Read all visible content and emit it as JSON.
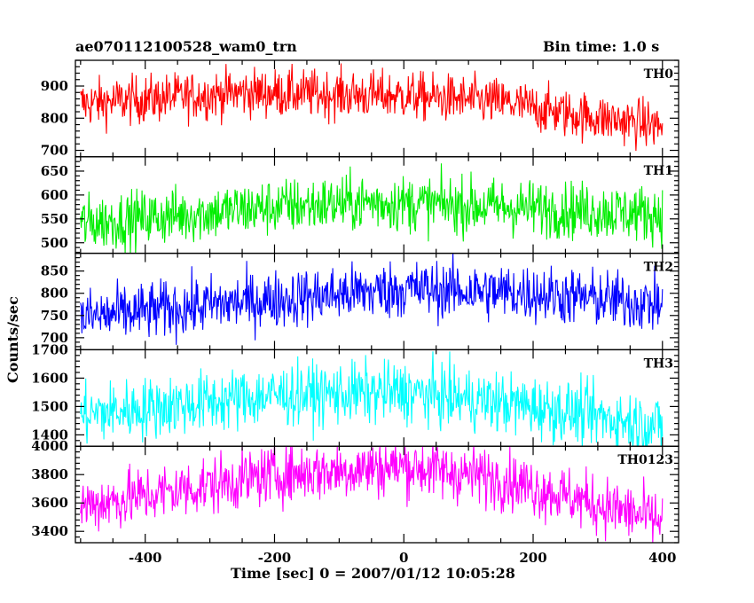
{
  "header": {
    "title": "ae070112100528_wam0_trn",
    "bin_time": "Bin time: 1.0 s"
  },
  "chart_data": {
    "type": "line",
    "xlabel": "Time [sec] 0 = 2007/01/12 10:05:28",
    "ylabel": "Counts/sec",
    "xlim": [
      -508,
      425
    ],
    "xticks": [
      -400,
      -200,
      0,
      200,
      400
    ],
    "series": [
      {
        "name": "TH0",
        "color": "#ff0000",
        "ylim": [
          680,
          980
        ],
        "yticks": [
          700,
          800,
          900
        ],
        "trend": [
          [
            -500,
            845
          ],
          [
            -250,
            880
          ],
          [
            0,
            870
          ],
          [
            150,
            850
          ],
          [
            250,
            815
          ],
          [
            400,
            775
          ]
        ],
        "noise": 38
      },
      {
        "name": "TH1",
        "color": "#00ee00",
        "ylim": [
          478,
          680
        ],
        "yticks": [
          500,
          550,
          600,
          650
        ],
        "trend": [
          [
            -500,
            540
          ],
          [
            -200,
            575
          ],
          [
            -50,
            585
          ],
          [
            150,
            575
          ],
          [
            400,
            560
          ]
        ],
        "noise": 30
      },
      {
        "name": "TH2",
        "color": "#0000ff",
        "ylim": [
          673,
          890
        ],
        "yticks": [
          700,
          750,
          800,
          850
        ],
        "trend": [
          [
            -500,
            745
          ],
          [
            -250,
            780
          ],
          [
            0,
            810
          ],
          [
            200,
            800
          ],
          [
            400,
            775
          ]
        ],
        "noise": 33
      },
      {
        "name": "TH3",
        "color": "#00ffff",
        "ylim": [
          1360,
          1700
        ],
        "yticks": [
          1400,
          1500,
          1600,
          1700
        ],
        "trend": [
          [
            -500,
            1470
          ],
          [
            -200,
            1540
          ],
          [
            0,
            1550
          ],
          [
            200,
            1500
          ],
          [
            400,
            1430
          ]
        ],
        "noise": 55
      },
      {
        "name": "TH0123",
        "color": "#ff00ff",
        "ylim": [
          3320,
          4000
        ],
        "yticks": [
          3400,
          3600,
          3800,
          4000
        ],
        "trend": [
          [
            -500,
            3580
          ],
          [
            -200,
            3800
          ],
          [
            0,
            3860
          ],
          [
            150,
            3770
          ],
          [
            250,
            3650
          ],
          [
            400,
            3470
          ]
        ],
        "noise": 105
      }
    ]
  }
}
